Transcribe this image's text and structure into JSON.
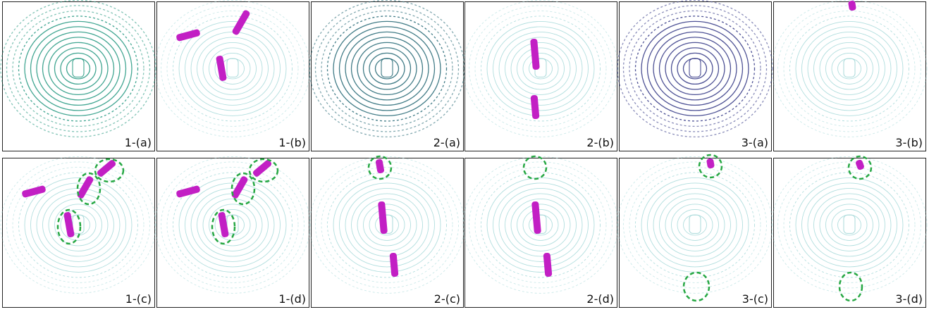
{
  "panels": [
    {
      "label": "1-(a)"
    },
    {
      "label": "1-(b)"
    },
    {
      "label": "2-(a)"
    },
    {
      "label": "2-(b)"
    },
    {
      "label": "3-(a)"
    },
    {
      "label": "3-(b)"
    },
    {
      "label": "1-(c)"
    },
    {
      "label": "1-(d)"
    },
    {
      "label": "2-(c)"
    },
    {
      "label": "2-(d)"
    },
    {
      "label": "3-(c)"
    },
    {
      "label": "3-(d)"
    }
  ]
}
